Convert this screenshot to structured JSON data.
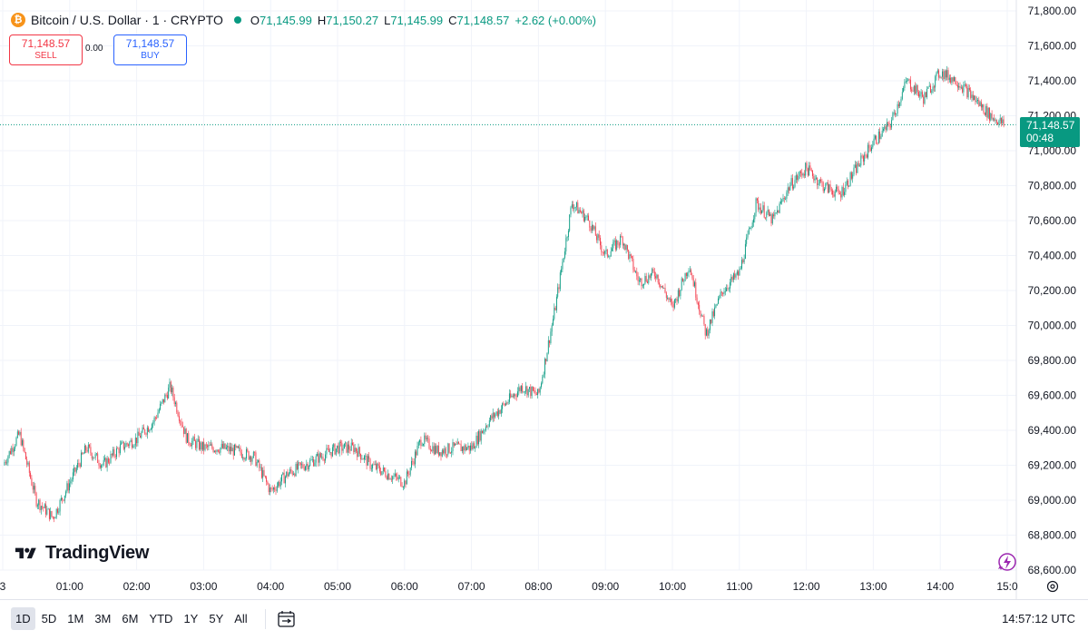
{
  "header": {
    "symbol_title": "Bitcoin / U.S. Dollar · 1 · CRYPTO",
    "ohlc": [
      {
        "label": "O",
        "value": "71,145.99"
      },
      {
        "label": "H",
        "value": "71,150.27"
      },
      {
        "label": "L",
        "value": "71,145.99"
      },
      {
        "label": "C",
        "value": "71,148.57"
      }
    ],
    "change": "+2.62 (+0.00%)"
  },
  "trade": {
    "sell_price": "71,148.57",
    "sell_label": "SELL",
    "spread": "0.00",
    "buy_price": "71,148.57",
    "buy_label": "BUY"
  },
  "last_price": {
    "price": "71,148.57",
    "countdown": "00:48"
  },
  "brand": "TradingView",
  "bottom_bar": {
    "ranges": [
      "1D",
      "5D",
      "1M",
      "3M",
      "6M",
      "YTD",
      "1Y",
      "5Y",
      "All"
    ],
    "active_range": "1D",
    "clock": "14:57:12 UTC"
  },
  "colors": {
    "up": "#089981",
    "down": "#f23645",
    "grid": "#f0f3fa",
    "price_line": "#089981"
  },
  "chart_data": {
    "type": "line",
    "title": "Bitcoin / U.S. Dollar · 1 · CRYPTO",
    "xlabel": "",
    "ylabel": "",
    "ylim": [
      68600,
      71800
    ],
    "xlim": [
      "00:00",
      "15:05"
    ],
    "y_ticks": [
      "71,800.00",
      "71,600.00",
      "71,400.00",
      "71,200.00",
      "71,000.00",
      "70,800.00",
      "70,600.00",
      "70,400.00",
      "70,200.00",
      "70,000.00",
      "69,800.00",
      "69,600.00",
      "69,400.00",
      "69,200.00",
      "69,000.00",
      "68,800.00",
      "68,600.00"
    ],
    "x_ticks": [
      "3",
      "01:00",
      "02:00",
      "03:00",
      "04:00",
      "05:00",
      "06:00",
      "07:00",
      "08:00",
      "09:00",
      "10:00",
      "11:00",
      "12:00",
      "13:00",
      "14:00",
      "15:0"
    ],
    "grid": true,
    "series": [
      {
        "x": [
          "00:00",
          "00:15",
          "00:30",
          "00:45",
          "01:00",
          "01:15",
          "01:30",
          "01:45",
          "02:00",
          "02:15",
          "02:30",
          "02:45",
          "03:00",
          "03:15",
          "03:30",
          "03:45",
          "04:00",
          "04:15",
          "04:30",
          "04:45",
          "05:00",
          "05:15",
          "05:30",
          "05:45",
          "06:00",
          "06:15",
          "06:30",
          "06:45",
          "07:00",
          "07:15",
          "07:30",
          "07:45",
          "08:00",
          "08:15",
          "08:30",
          "08:45",
          "09:00",
          "09:15",
          "09:30",
          "09:45",
          "10:00",
          "10:15",
          "10:30",
          "10:45",
          "11:00",
          "11:15",
          "11:30",
          "11:45",
          "12:00",
          "12:15",
          "12:30",
          "12:45",
          "13:00",
          "13:15",
          "13:30",
          "13:45",
          "14:00",
          "14:15",
          "14:30",
          "14:45",
          "14:57"
        ],
        "values": [
          69200,
          69380,
          69000,
          68900,
          69100,
          69300,
          69200,
          69300,
          69350,
          69450,
          69650,
          69350,
          69300,
          69300,
          69280,
          69250,
          69050,
          69150,
          69200,
          69250,
          69300,
          69300,
          69200,
          69150,
          69100,
          69350,
          69280,
          69300,
          69300,
          69450,
          69550,
          69650,
          69600,
          70100,
          70700,
          70600,
          70400,
          70500,
          70250,
          70300,
          70100,
          70350,
          69950,
          70200,
          70300,
          70700,
          70600,
          70800,
          70900,
          70800,
          70750,
          70900,
          71050,
          71150,
          71400,
          71300,
          71450,
          71400,
          71300,
          71200,
          71149
        ]
      }
    ]
  }
}
